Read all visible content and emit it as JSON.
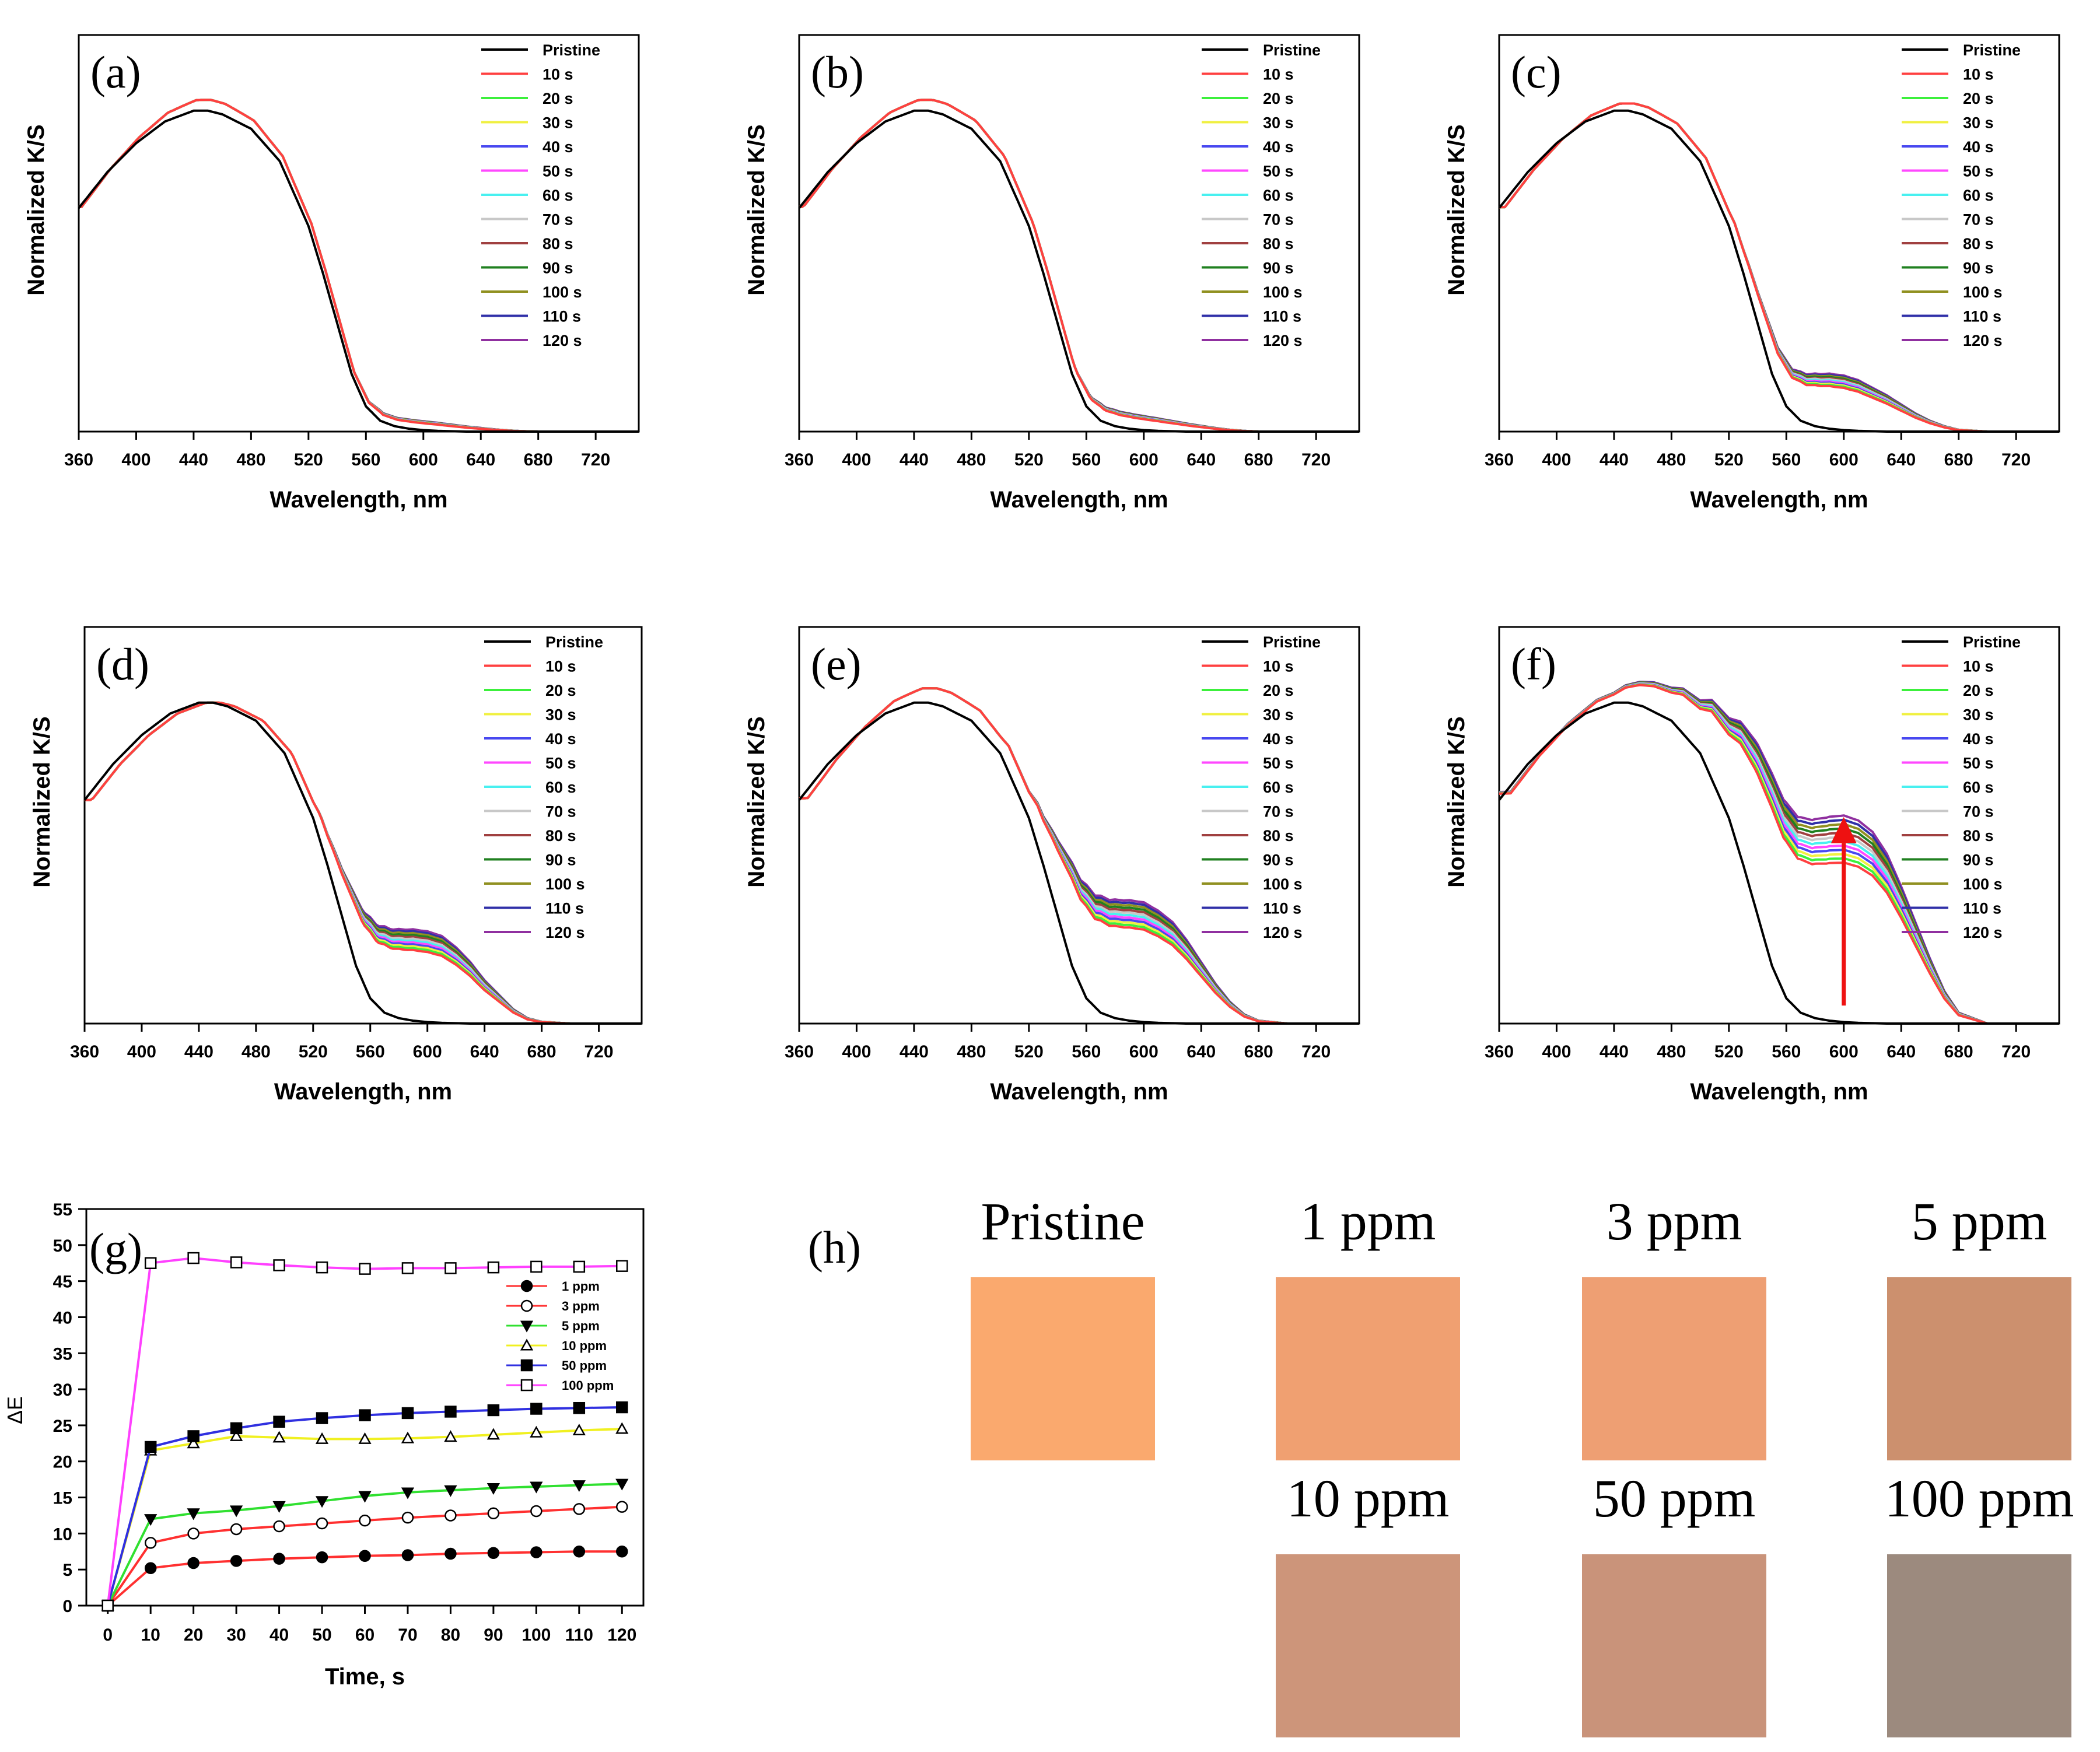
{
  "figure": {
    "background": "#ffffff",
    "font_color": "#000000"
  },
  "legend_colors": [
    "#000000",
    "#ff4040",
    "#3cf03c",
    "#f0f040",
    "#4848f0",
    "#ff48ff",
    "#48f0f0",
    "#c8c8c8",
    "#a04040",
    "#208020",
    "#909020",
    "#3030a8",
    "#9030a0"
  ],
  "chart_data": [
    {
      "type": "line",
      "panel": "(a)",
      "title": "(a)",
      "xlabel": "Wavelength, nm",
      "ylabel": "Normalized K/S",
      "xlim": [
        360,
        750
      ],
      "ylim": [
        0,
        1.1
      ],
      "xticks": [
        360,
        400,
        440,
        480,
        520,
        560,
        600,
        640,
        680,
        720
      ],
      "legend": [
        "Pristine",
        "10 s",
        "20 s",
        "30 s",
        "40 s",
        "50 s",
        "60 s",
        "70 s",
        "80 s",
        "90 s",
        "100 s",
        "110 s",
        "120 s"
      ],
      "x": [
        360,
        380,
        400,
        420,
        440,
        450,
        460,
        480,
        500,
        520,
        530,
        540,
        550,
        560,
        570,
        580,
        590,
        600,
        610,
        620,
        630,
        640,
        650,
        660,
        670,
        680,
        700,
        720,
        750
      ],
      "pristine": [
        0.62,
        0.72,
        0.8,
        0.86,
        0.89,
        0.89,
        0.88,
        0.84,
        0.75,
        0.57,
        0.44,
        0.3,
        0.16,
        0.07,
        0.03,
        0.015,
        0.008,
        0.004,
        0.002,
        0.001,
        0,
        0,
        0,
        0,
        0,
        0,
        0,
        0,
        0
      ],
      "shoulder": [
        0,
        0,
        0,
        0,
        0,
        0,
        0,
        0,
        0,
        0,
        0,
        0,
        0,
        0.01,
        0.02,
        0.022,
        0.024,
        0.024,
        0.022,
        0.018,
        0.014,
        0.01,
        0.006,
        0.003,
        0.001,
        0,
        0,
        0,
        0
      ],
      "shift": 2,
      "peak_gain": 0.03
    },
    {
      "type": "line",
      "panel": "(b)",
      "title": "(b)",
      "xlabel": "Wavelength, nm",
      "ylabel": "Normalized K/S",
      "xlim": [
        360,
        750
      ],
      "ylim": [
        0,
        1.1
      ],
      "xticks": [
        360,
        400,
        440,
        480,
        520,
        560,
        600,
        640,
        680,
        720
      ],
      "legend": [
        "Pristine",
        "10 s",
        "20 s",
        "30 s",
        "40 s",
        "50 s",
        "60 s",
        "70 s",
        "80 s",
        "90 s",
        "100 s",
        "110 s",
        "120 s"
      ],
      "x": [
        360,
        380,
        400,
        420,
        440,
        450,
        460,
        480,
        500,
        520,
        530,
        540,
        550,
        560,
        570,
        580,
        590,
        600,
        610,
        620,
        630,
        640,
        650,
        660,
        670,
        680,
        700,
        720,
        750
      ],
      "pristine": [
        0.62,
        0.72,
        0.8,
        0.86,
        0.89,
        0.89,
        0.88,
        0.84,
        0.75,
        0.57,
        0.44,
        0.3,
        0.16,
        0.07,
        0.03,
        0.015,
        0.008,
        0.004,
        0.002,
        0.001,
        0,
        0,
        0,
        0,
        0,
        0,
        0,
        0,
        0
      ],
      "shoulder": [
        0,
        0,
        0,
        0,
        0,
        0,
        0,
        0,
        0,
        0,
        0,
        0,
        0,
        0.02,
        0.035,
        0.04,
        0.04,
        0.038,
        0.034,
        0.028,
        0.022,
        0.016,
        0.01,
        0.005,
        0.002,
        0,
        0,
        0,
        0
      ],
      "shift": 3,
      "peak_gain": 0.03
    },
    {
      "type": "line",
      "panel": "(c)",
      "title": "(c)",
      "xlabel": "Wavelength, nm",
      "ylabel": "Normalized K/S",
      "xlim": [
        360,
        750
      ],
      "ylim": [
        0,
        1.1
      ],
      "xticks": [
        360,
        400,
        440,
        480,
        520,
        560,
        600,
        640,
        680,
        720
      ],
      "legend": [
        "Pristine",
        "10 s",
        "20 s",
        "30 s",
        "40 s",
        "50 s",
        "60 s",
        "70 s",
        "80 s",
        "90 s",
        "100 s",
        "110 s",
        "120 s"
      ],
      "x": [
        360,
        380,
        400,
        420,
        440,
        450,
        460,
        480,
        500,
        520,
        530,
        540,
        550,
        560,
        570,
        580,
        590,
        600,
        610,
        620,
        630,
        640,
        650,
        660,
        670,
        680,
        700,
        720,
        750
      ],
      "pristine": [
        0.62,
        0.72,
        0.8,
        0.86,
        0.89,
        0.89,
        0.88,
        0.84,
        0.75,
        0.57,
        0.44,
        0.3,
        0.16,
        0.07,
        0.03,
        0.015,
        0.008,
        0.004,
        0.002,
        0.001,
        0,
        0,
        0,
        0,
        0,
        0,
        0,
        0,
        0
      ],
      "shoulder": [
        0,
        0,
        0,
        0,
        0,
        0,
        0,
        0,
        0,
        0,
        0.01,
        0.03,
        0.06,
        0.09,
        0.12,
        0.14,
        0.15,
        0.15,
        0.14,
        0.12,
        0.1,
        0.075,
        0.05,
        0.03,
        0.015,
        0.005,
        0,
        0,
        0
      ],
      "shift": 4,
      "peak_gain": 0.02
    },
    {
      "type": "line",
      "panel": "(d)",
      "title": "(d)",
      "xlabel": "Wavelength, nm",
      "ylabel": "Normalized K/S",
      "xlim": [
        360,
        750
      ],
      "ylim": [
        0,
        1.1
      ],
      "xticks": [
        360,
        400,
        440,
        480,
        520,
        560,
        600,
        640,
        680,
        720
      ],
      "legend": [
        "Pristine",
        "10 s",
        "20 s",
        "30 s",
        "40 s",
        "50 s",
        "60 s",
        "70 s",
        "80 s",
        "90 s",
        "100 s",
        "110 s",
        "120 s"
      ],
      "x": [
        360,
        380,
        400,
        420,
        440,
        450,
        460,
        480,
        500,
        520,
        530,
        540,
        550,
        560,
        570,
        580,
        590,
        600,
        610,
        620,
        630,
        640,
        650,
        660,
        670,
        680,
        700,
        720,
        750
      ],
      "pristine": [
        0.62,
        0.72,
        0.8,
        0.86,
        0.89,
        0.89,
        0.88,
        0.84,
        0.75,
        0.57,
        0.44,
        0.3,
        0.16,
        0.07,
        0.03,
        0.015,
        0.008,
        0.004,
        0.002,
        0.001,
        0,
        0,
        0,
        0,
        0,
        0,
        0,
        0,
        0
      ],
      "shoulder": [
        0,
        0,
        0,
        0,
        0,
        0,
        0,
        0,
        0,
        0,
        0.02,
        0.06,
        0.12,
        0.18,
        0.22,
        0.24,
        0.25,
        0.25,
        0.24,
        0.21,
        0.17,
        0.12,
        0.08,
        0.04,
        0.015,
        0.005,
        0,
        0,
        0
      ],
      "shift": 5,
      "peak_gain": 0.0
    },
    {
      "type": "line",
      "panel": "(e)",
      "title": "(e)",
      "xlabel": "Wavelength, nm",
      "ylabel": "Normalized K/S",
      "xlim": [
        360,
        750
      ],
      "ylim": [
        0,
        1.1
      ],
      "xticks": [
        360,
        400,
        440,
        480,
        520,
        560,
        600,
        640,
        680,
        720
      ],
      "legend": [
        "Pristine",
        "10 s",
        "20 s",
        "30 s",
        "40 s",
        "50 s",
        "60 s",
        "70 s",
        "80 s",
        "90 s",
        "100 s",
        "110 s",
        "120 s"
      ],
      "x": [
        360,
        380,
        400,
        420,
        440,
        450,
        460,
        480,
        500,
        520,
        530,
        540,
        550,
        560,
        570,
        580,
        590,
        600,
        610,
        620,
        630,
        640,
        650,
        660,
        670,
        680,
        700,
        720,
        750
      ],
      "pristine": [
        0.62,
        0.72,
        0.8,
        0.86,
        0.89,
        0.89,
        0.88,
        0.84,
        0.75,
        0.57,
        0.44,
        0.3,
        0.16,
        0.07,
        0.03,
        0.015,
        0.008,
        0.004,
        0.002,
        0.001,
        0,
        0,
        0,
        0,
        0,
        0,
        0,
        0,
        0
      ],
      "shoulder": [
        0,
        0,
        0,
        0,
        0,
        0,
        0,
        0,
        0,
        0.01,
        0.05,
        0.12,
        0.2,
        0.26,
        0.3,
        0.32,
        0.33,
        0.33,
        0.31,
        0.28,
        0.23,
        0.17,
        0.11,
        0.06,
        0.025,
        0.008,
        0,
        0,
        0
      ],
      "shift": 6,
      "peak_gain": 0.04
    },
    {
      "type": "line",
      "panel": "(f)",
      "title": "(f)",
      "xlabel": "Wavelength, nm",
      "ylabel": "Normalized K/S",
      "xlim": [
        360,
        750
      ],
      "ylim": [
        0,
        1.1
      ],
      "xticks": [
        360,
        400,
        440,
        480,
        520,
        560,
        600,
        640,
        680,
        720
      ],
      "legend": [
        "Pristine",
        "10 s",
        "20 s",
        "30 s",
        "40 s",
        "50 s",
        "60 s",
        "70 s",
        "80 s",
        "90 s",
        "100 s",
        "110 s",
        "120 s"
      ],
      "x": [
        360,
        380,
        400,
        420,
        440,
        450,
        460,
        480,
        500,
        520,
        530,
        540,
        550,
        560,
        570,
        580,
        590,
        600,
        610,
        620,
        630,
        640,
        650,
        660,
        670,
        680,
        700,
        720,
        750
      ],
      "pristine": [
        0.62,
        0.72,
        0.8,
        0.86,
        0.89,
        0.89,
        0.88,
        0.84,
        0.75,
        0.57,
        0.44,
        0.3,
        0.16,
        0.07,
        0.03,
        0.015,
        0.008,
        0.004,
        0.002,
        0.001,
        0,
        0,
        0,
        0,
        0,
        0,
        0,
        0,
        0
      ],
      "shoulder": [
        0.02,
        0.02,
        0.02,
        0.02,
        0.02,
        0.03,
        0.04,
        0.06,
        0.1,
        0.2,
        0.28,
        0.36,
        0.42,
        0.47,
        0.51,
        0.54,
        0.56,
        0.57,
        0.56,
        0.53,
        0.47,
        0.38,
        0.28,
        0.18,
        0.09,
        0.03,
        0,
        0,
        0
      ],
      "shift": 8,
      "peak_gain": 0.02,
      "annotation": "red upward arrow at 600 nm"
    },
    {
      "type": "line",
      "panel": "(g)",
      "title": "(g)",
      "xlabel": "Time, s",
      "ylabel": "ΔE",
      "xlim": [
        -5,
        125
      ],
      "ylim": [
        0,
        55
      ],
      "xticks": [
        0,
        10,
        20,
        30,
        40,
        50,
        60,
        70,
        80,
        90,
        100,
        110,
        120
      ],
      "yticks": [
        0,
        5,
        10,
        15,
        20,
        25,
        30,
        35,
        40,
        45,
        50,
        55
      ],
      "x": [
        0,
        10,
        20,
        30,
        40,
        50,
        60,
        70,
        80,
        90,
        100,
        110,
        120
      ],
      "series": [
        {
          "name": "1 ppm",
          "color": "#ff3030",
          "marker": "circle-filled",
          "values": [
            0,
            5.2,
            5.9,
            6.2,
            6.5,
            6.7,
            6.9,
            7.0,
            7.2,
            7.3,
            7.4,
            7.5,
            7.5
          ]
        },
        {
          "name": "3 ppm",
          "color": "#ff3030",
          "marker": "circle-open",
          "values": [
            0,
            8.7,
            10.0,
            10.6,
            11.0,
            11.4,
            11.8,
            12.2,
            12.5,
            12.8,
            13.1,
            13.4,
            13.7
          ]
        },
        {
          "name": "5 ppm",
          "color": "#30e030",
          "marker": "triangle-down-filled",
          "values": [
            0,
            12.0,
            12.8,
            13.2,
            13.8,
            14.5,
            15.2,
            15.7,
            16.0,
            16.3,
            16.5,
            16.7,
            16.9
          ]
        },
        {
          "name": "10 ppm",
          "color": "#f0f020",
          "marker": "triangle-up-open",
          "values": [
            0,
            21.5,
            22.5,
            23.5,
            23.3,
            23.1,
            23.1,
            23.2,
            23.4,
            23.7,
            24.0,
            24.3,
            24.5
          ]
        },
        {
          "name": "50 ppm",
          "color": "#3030e0",
          "marker": "square-filled",
          "values": [
            0,
            22.0,
            23.5,
            24.6,
            25.5,
            26.0,
            26.4,
            26.7,
            26.9,
            27.1,
            27.3,
            27.4,
            27.5
          ]
        },
        {
          "name": "100 ppm",
          "color": "#ff40ff",
          "marker": "square-open",
          "values": [
            0,
            47.5,
            48.2,
            47.6,
            47.2,
            46.9,
            46.7,
            46.8,
            46.8,
            46.9,
            47.0,
            47.0,
            47.1
          ]
        }
      ]
    }
  ],
  "swatches": {
    "label": "(h)",
    "items": [
      {
        "name": "Pristine",
        "color": "#faa96e"
      },
      {
        "name": "1 ppm",
        "color": "#f0a071"
      },
      {
        "name": "3 ppm",
        "color": "#ee9f73"
      },
      {
        "name": "5 ppm",
        "color": "#cc906e"
      },
      {
        "name": "10 ppm",
        "color": "#cd957a"
      },
      {
        "name": "50 ppm",
        "color": "#c9937a"
      },
      {
        "name": "100 ppm",
        "color": "#9c8a7e"
      }
    ]
  },
  "annotation_color": "#ee1111"
}
